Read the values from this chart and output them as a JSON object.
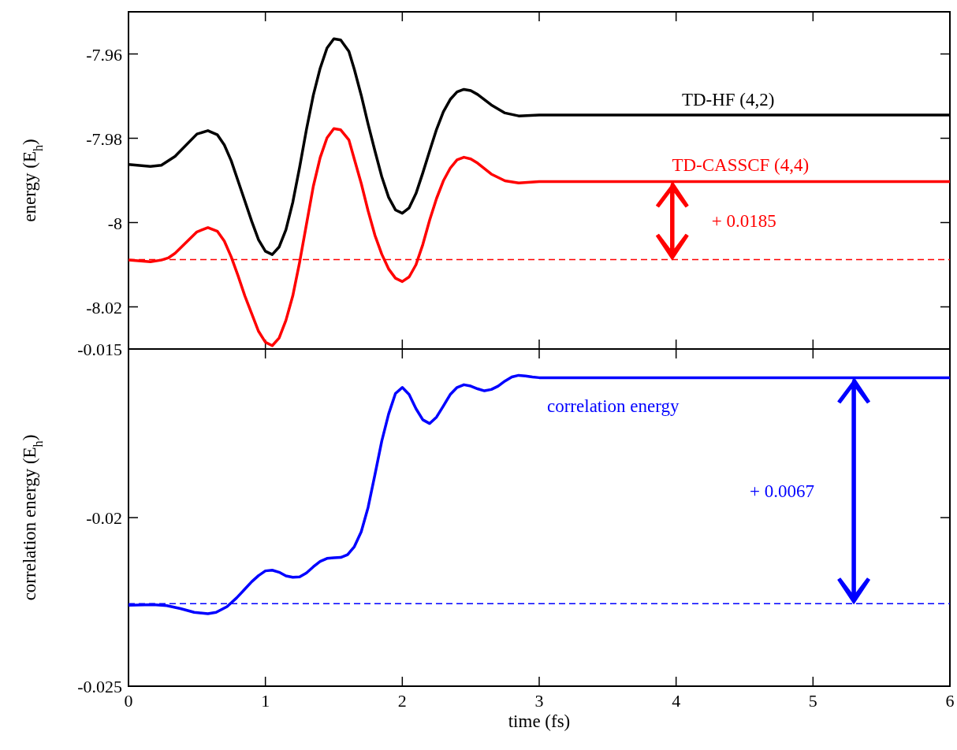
{
  "chart_data": [
    {
      "type": "line",
      "ylabel": "energy (E$_{h}$)",
      "xlim": [
        0,
        6
      ],
      "xticks": [
        0,
        1,
        2,
        3,
        4,
        5,
        6
      ],
      "ylim": [
        -8.03,
        -7.95
      ],
      "yticks": [
        {
          "value": -8.02,
          "label": "-8.02"
        },
        {
          "value": -8,
          "label": "-8"
        },
        {
          "value": -7.98,
          "label": "-7.98"
        },
        {
          "value": -7.96,
          "label": "-7.96"
        }
      ],
      "tick_labels": "y",
      "series": [
        {
          "name": "TD-HF  (4,2)",
          "color": "#000000",
          "x": [
            0,
            0.16,
            0.24,
            0.34,
            0.5,
            0.58,
            0.65,
            0.7,
            0.75,
            0.82,
            0.9,
            0.95,
            1,
            1.05,
            1.1,
            1.15,
            1.2,
            1.25,
            1.3,
            1.35,
            1.4,
            1.45,
            1.5,
            1.55,
            1.61,
            1.65,
            1.7,
            1.75,
            1.8,
            1.85,
            1.9,
            1.95,
            2,
            2.05,
            2.1,
            2.15,
            2.2,
            2.25,
            2.3,
            2.35,
            2.4,
            2.45,
            2.5,
            2.55,
            2.65,
            2.75,
            2.85,
            3,
            6
          ],
          "values": [
            -7.9862,
            -7.9867,
            -7.9864,
            -7.9843,
            -7.979,
            -7.9782,
            -7.9792,
            -7.9816,
            -7.9853,
            -7.992,
            -7.9997,
            -8.0041,
            -8.0068,
            -8.0076,
            -8.0058,
            -8.0017,
            -7.9952,
            -7.9869,
            -7.9779,
            -7.9698,
            -7.9634,
            -7.9586,
            -7.9564,
            -7.9567,
            -7.9594,
            -7.9637,
            -7.9698,
            -7.9766,
            -7.983,
            -7.9891,
            -7.994,
            -7.997,
            -7.9978,
            -7.9965,
            -7.9931,
            -7.9882,
            -7.983,
            -7.9779,
            -7.9737,
            -7.9708,
            -7.969,
            -7.9684,
            -7.9687,
            -7.9696,
            -7.9721,
            -7.974,
            -7.9747,
            -7.9745,
            -7.9745
          ]
        },
        {
          "name": "TD-CASSCF (4,4)",
          "color": "#ff0000",
          "x": [
            0,
            0.16,
            0.24,
            0.29,
            0.34,
            0.5,
            0.58,
            0.65,
            0.7,
            0.75,
            0.8,
            0.85,
            0.9,
            0.95,
            1,
            1.05,
            1.1,
            1.15,
            1.2,
            1.25,
            1.3,
            1.35,
            1.4,
            1.45,
            1.5,
            1.55,
            1.61,
            1.65,
            1.7,
            1.75,
            1.8,
            1.85,
            1.9,
            1.95,
            2,
            2.05,
            2.1,
            2.15,
            2.2,
            2.25,
            2.3,
            2.35,
            2.4,
            2.45,
            2.5,
            2.55,
            2.65,
            2.75,
            2.85,
            3,
            6
          ],
          "values": [
            -8.0089,
            -8.0093,
            -8.0089,
            -8.0084,
            -8.0073,
            -8.0022,
            -8.0012,
            -8.0021,
            -8.0044,
            -8.0081,
            -8.0126,
            -8.0174,
            -8.0216,
            -8.0258,
            -8.0284,
            -8.0292,
            -8.0274,
            -8.0232,
            -8.0174,
            -8.0094,
            -8.0004,
            -7.9914,
            -7.9846,
            -7.9799,
            -7.9777,
            -7.978,
            -7.9804,
            -7.985,
            -7.9907,
            -7.9972,
            -8.003,
            -8.0075,
            -8.011,
            -8.0132,
            -8.014,
            -8.0129,
            -8.01,
            -8.0052,
            -7.9994,
            -7.9943,
            -7.9901,
            -7.9871,
            -7.9851,
            -7.9845,
            -7.9849,
            -7.9859,
            -7.9885,
            -7.9901,
            -7.9906,
            -7.9903,
            -7.9903
          ]
        }
      ],
      "ref_lines": [
        {
          "axis": "y",
          "value": -8.0088,
          "color": "#ff0000",
          "line_style": "dashed"
        }
      ],
      "annotations": [
        "+ 0.0185"
      ]
    },
    {
      "type": "line",
      "xlabel": "time (fs)",
      "ylabel": "correlation energy (E$_{h}$)",
      "xlim": [
        0,
        6
      ],
      "xticks": [
        0,
        1,
        2,
        3,
        4,
        5,
        6
      ],
      "ylim": [
        -0.025,
        -0.015
      ],
      "yticks": [
        -0.025,
        -0.02,
        -0.015
      ],
      "series": [
        {
          "name": "correlation energy",
          "color": "#0000ff",
          "x": [
            0,
            0.18,
            0.28,
            0.38,
            0.48,
            0.58,
            0.64,
            0.72,
            0.79,
            0.85,
            0.9,
            0.95,
            1,
            1.05,
            1.1,
            1.15,
            1.2,
            1.25,
            1.3,
            1.35,
            1.4,
            1.45,
            1.5,
            1.55,
            1.6,
            1.65,
            1.7,
            1.75,
            1.8,
            1.85,
            1.9,
            1.95,
            2,
            2.05,
            2.1,
            2.15,
            2.2,
            2.25,
            2.3,
            2.35,
            2.4,
            2.45,
            2.5,
            2.55,
            2.6,
            2.65,
            2.7,
            2.75,
            2.8,
            2.85,
            2.9,
            2.95,
            3,
            6
          ],
          "values": [
            -0.0226,
            -0.02258,
            -0.02261,
            -0.0227,
            -0.02281,
            -0.02285,
            -0.02281,
            -0.02264,
            -0.02238,
            -0.02212,
            -0.0219,
            -0.02172,
            -0.02158,
            -0.02156,
            -0.02162,
            -0.02173,
            -0.02177,
            -0.02176,
            -0.02164,
            -0.02146,
            -0.0213,
            -0.02121,
            -0.02119,
            -0.02118,
            -0.0211,
            -0.02086,
            -0.02042,
            -0.0197,
            -0.01873,
            -0.01773,
            -0.01693,
            -0.01632,
            -0.01614,
            -0.01635,
            -0.01677,
            -0.0171,
            -0.01721,
            -0.01702,
            -0.01669,
            -0.01635,
            -0.01614,
            -0.01606,
            -0.0161,
            -0.01618,
            -0.01624,
            -0.0162,
            -0.0161,
            -0.01595,
            -0.01583,
            -0.01578,
            -0.0158,
            -0.01583,
            -0.01585,
            -0.01585
          ]
        }
      ],
      "ref_lines": [
        {
          "axis": "y",
          "value": -0.02255,
          "color": "#0000ff",
          "line_style": "dashed"
        }
      ],
      "annotations": [
        "+ 0.0067"
      ]
    }
  ]
}
